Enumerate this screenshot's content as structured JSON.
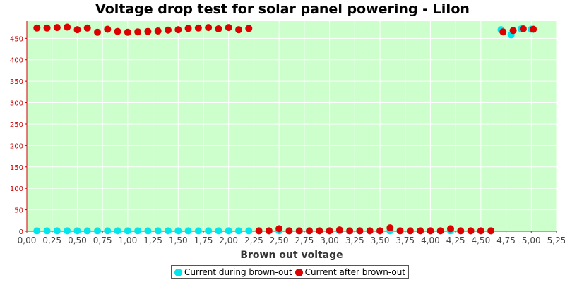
{
  "chart_data": {
    "type": "scatter",
    "title": "Voltage drop test for solar panel powering -  LiIon",
    "xlabel": "Brown out voltage",
    "ylabel": "",
    "xlim": [
      0,
      5.25
    ],
    "ylim": [
      0,
      490
    ],
    "x_ticks": [
      0,
      0.25,
      0.5,
      0.75,
      1.0,
      1.25,
      1.5,
      1.75,
      2.0,
      2.25,
      2.5,
      2.75,
      3.0,
      3.25,
      3.5,
      3.75,
      4.0,
      4.25,
      4.5,
      4.75,
      5.0,
      5.25
    ],
    "x_tick_labels": [
      "0,00",
      "0,25",
      "0,50",
      "0,75",
      "1,00",
      "1,25",
      "1,50",
      "1,75",
      "2,00",
      "2,25",
      "2,50",
      "2,75",
      "3,00",
      "3,25",
      "3,50",
      "3,75",
      "4,00",
      "4,25",
      "4,50",
      "4,75",
      "5,00",
      "5,25"
    ],
    "y_ticks": [
      0,
      50,
      100,
      150,
      200,
      250,
      300,
      350,
      400,
      450
    ],
    "y_tick_labels": [
      "0",
      "50",
      "100",
      "150",
      "200",
      "250",
      "300",
      "350",
      "400",
      "450"
    ],
    "grid": true,
    "legend_position": "bottom",
    "colors": {
      "plot_background": "#ccffcc",
      "axis": "#cc0000",
      "grid": "#ffffff"
    },
    "series": [
      {
        "name": "Current during brown-out",
        "color": "#00e5ee",
        "points": [
          [
            0.1,
            1
          ],
          [
            0.2,
            1
          ],
          [
            0.3,
            1
          ],
          [
            0.4,
            1
          ],
          [
            0.5,
            1
          ],
          [
            0.6,
            1
          ],
          [
            0.7,
            1
          ],
          [
            0.8,
            1
          ],
          [
            0.9,
            1
          ],
          [
            1.0,
            1
          ],
          [
            1.1,
            1
          ],
          [
            1.2,
            1
          ],
          [
            1.3,
            1
          ],
          [
            1.4,
            1
          ],
          [
            1.5,
            1
          ],
          [
            1.6,
            1
          ],
          [
            1.7,
            1
          ],
          [
            1.8,
            1
          ],
          [
            1.9,
            1
          ],
          [
            2.0,
            1
          ],
          [
            2.1,
            1
          ],
          [
            2.2,
            1
          ],
          [
            2.3,
            1
          ],
          [
            2.4,
            1
          ],
          [
            2.5,
            1
          ],
          [
            2.6,
            1
          ],
          [
            2.7,
            1
          ],
          [
            2.8,
            1
          ],
          [
            2.9,
            1
          ],
          [
            3.0,
            1
          ],
          [
            3.1,
            1
          ],
          [
            3.2,
            1
          ],
          [
            3.3,
            1
          ],
          [
            3.4,
            1
          ],
          [
            3.5,
            1
          ],
          [
            3.6,
            1
          ],
          [
            3.7,
            1
          ],
          [
            3.8,
            1
          ],
          [
            3.9,
            1
          ],
          [
            4.0,
            1
          ],
          [
            4.1,
            1
          ],
          [
            4.2,
            1
          ],
          [
            4.3,
            1
          ],
          [
            4.4,
            1
          ],
          [
            4.5,
            1
          ],
          [
            4.6,
            1
          ],
          [
            4.7,
            470
          ],
          [
            4.8,
            458
          ],
          [
            4.9,
            472
          ],
          [
            5.0,
            471
          ]
        ]
      },
      {
        "name": "Current after brown-out",
        "color": "#dd0000",
        "points": [
          [
            0.1,
            474
          ],
          [
            0.2,
            474
          ],
          [
            0.3,
            475
          ],
          [
            0.4,
            476
          ],
          [
            0.5,
            470
          ],
          [
            0.6,
            474
          ],
          [
            0.7,
            464
          ],
          [
            0.8,
            471
          ],
          [
            0.9,
            466
          ],
          [
            1.0,
            464
          ],
          [
            1.1,
            465
          ],
          [
            1.2,
            466
          ],
          [
            1.3,
            467
          ],
          [
            1.4,
            469
          ],
          [
            1.5,
            470
          ],
          [
            1.6,
            473
          ],
          [
            1.7,
            474
          ],
          [
            1.8,
            475
          ],
          [
            1.9,
            472
          ],
          [
            2.0,
            475
          ],
          [
            2.1,
            470
          ],
          [
            2.2,
            473
          ],
          [
            2.3,
            1
          ],
          [
            2.4,
            1
          ],
          [
            2.5,
            6
          ],
          [
            2.6,
            1
          ],
          [
            2.7,
            1
          ],
          [
            2.8,
            1
          ],
          [
            2.9,
            1
          ],
          [
            3.0,
            1
          ],
          [
            3.1,
            3
          ],
          [
            3.2,
            1
          ],
          [
            3.3,
            1
          ],
          [
            3.4,
            1
          ],
          [
            3.5,
            1
          ],
          [
            3.6,
            8
          ],
          [
            3.7,
            1
          ],
          [
            3.8,
            1
          ],
          [
            3.9,
            1
          ],
          [
            4.0,
            1
          ],
          [
            4.1,
            1
          ],
          [
            4.2,
            6
          ],
          [
            4.3,
            1
          ],
          [
            4.4,
            1
          ],
          [
            4.5,
            1
          ],
          [
            4.6,
            1
          ],
          [
            4.72,
            465
          ],
          [
            4.82,
            468
          ],
          [
            4.92,
            472
          ],
          [
            5.02,
            471
          ]
        ]
      }
    ]
  }
}
